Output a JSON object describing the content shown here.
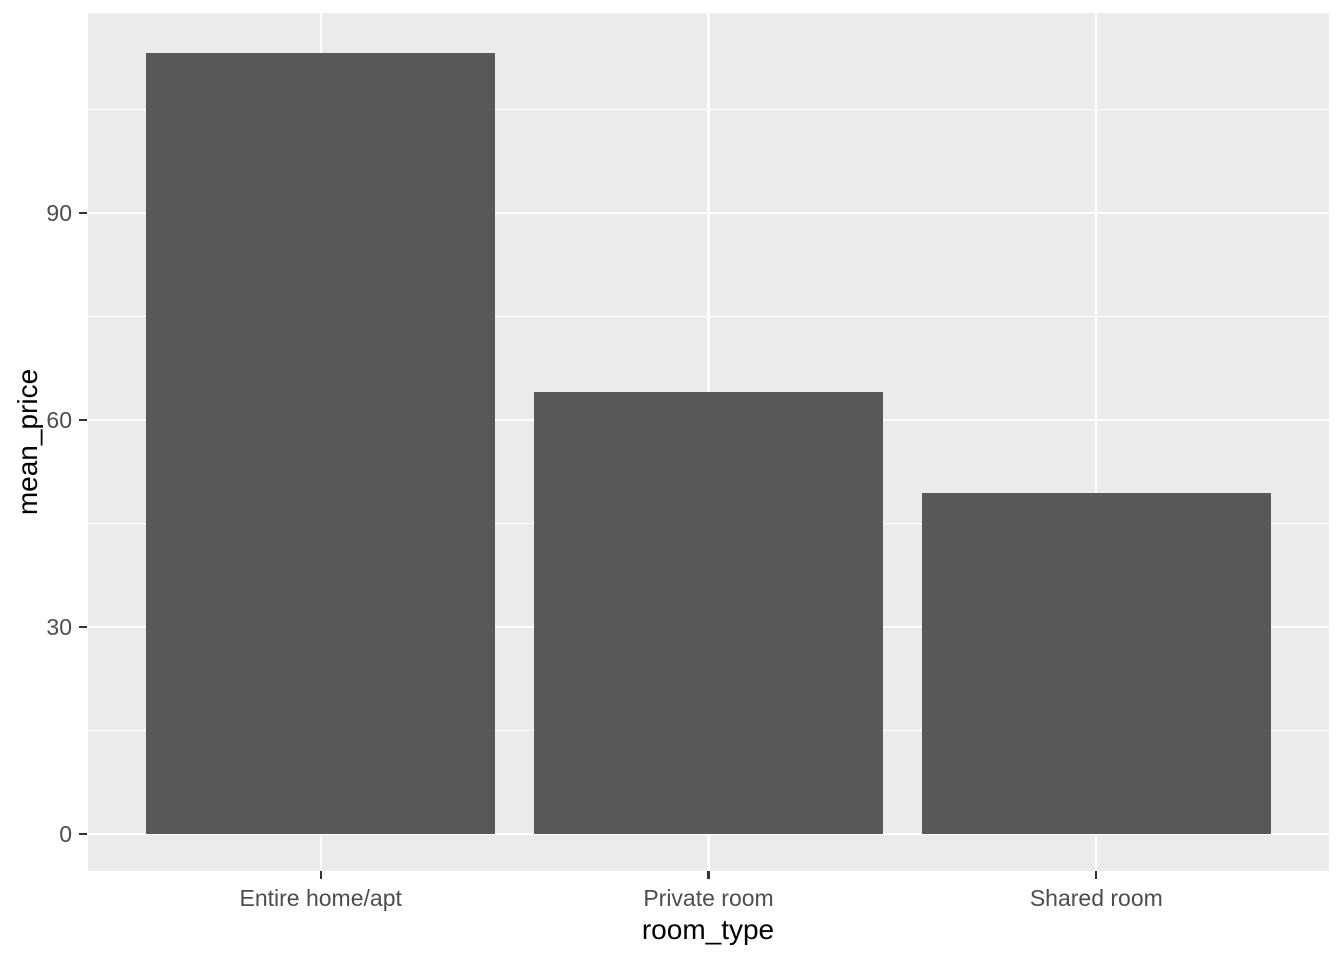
{
  "figure": {
    "background_color": "#FFFFFF",
    "panel_background_color": "#EBEBEB",
    "gridline_color": "#FFFFFF",
    "bar_color": "#595959",
    "tick_mark_color": "#333333",
    "tick_label_color": "#4D4D4D",
    "axis_title_color": "#000000"
  },
  "chart_data": {
    "type": "bar",
    "title": "",
    "xlabel": "room_type",
    "ylabel": "mean_price",
    "categories": [
      "Entire home/apt",
      "Private room",
      "Shared room"
    ],
    "values": [
      113.2,
      64.1,
      49.4
    ],
    "y_major_ticks": [
      0,
      30,
      60,
      90
    ],
    "y_minor_gridlines": [
      15,
      45,
      75,
      105
    ],
    "ylim": [
      -5.4,
      119.0
    ],
    "grid": true,
    "legend_position": "none",
    "style": "ggplot2-grey-theme",
    "bar_relative_width": 0.9
  }
}
